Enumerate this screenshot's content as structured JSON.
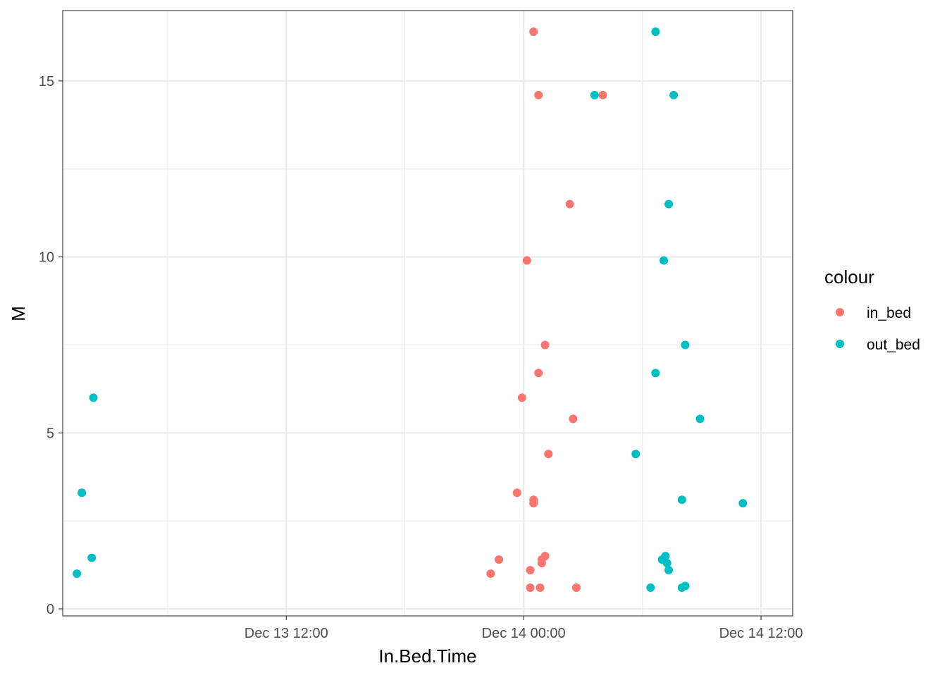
{
  "chart_data": {
    "type": "scatter",
    "title": "",
    "xlabel": "In.Bed.Time",
    "ylabel": "M",
    "x_ticks": [
      "Dec 13 12:00",
      "Dec 14 00:00",
      "Dec 14 12:00"
    ],
    "y_ticks": [
      "0",
      "5",
      "10",
      "15"
    ],
    "xlim": [
      "Dec 13 00:42",
      "Dec 14 13:36"
    ],
    "ylim": [
      -0.2,
      17.0
    ],
    "grid": true,
    "legend": {
      "title": "colour",
      "position": "right"
    },
    "colors": {
      "in_bed": "#F8766D",
      "out_bed": "#00BFC4"
    },
    "series": [
      {
        "name": "in_bed",
        "points": [
          {
            "x": "Dec 14 00:30",
            "y": 16.4
          },
          {
            "x": "Dec 14 00:45",
            "y": 14.6
          },
          {
            "x": "Dec 14 04:00",
            "y": 14.6
          },
          {
            "x": "Dec 14 02:20",
            "y": 11.5
          },
          {
            "x": "Dec 14 00:10",
            "y": 9.9
          },
          {
            "x": "Dec 14 01:05",
            "y": 7.5
          },
          {
            "x": "Dec 14 00:45",
            "y": 6.7
          },
          {
            "x": "Dec 13 23:55",
            "y": 6.0
          },
          {
            "x": "Dec 14 02:30",
            "y": 5.4
          },
          {
            "x": "Dec 14 01:15",
            "y": 4.4
          },
          {
            "x": "Dec 13 23:40",
            "y": 3.3
          },
          {
            "x": "Dec 14 00:30",
            "y": 3.1
          },
          {
            "x": "Dec 14 00:30",
            "y": 3.0
          },
          {
            "x": "Dec 14 01:05",
            "y": 1.5
          },
          {
            "x": "Dec 14 00:55",
            "y": 1.4
          },
          {
            "x": "Dec 14 00:55",
            "y": 1.3
          },
          {
            "x": "Dec 13 22:45",
            "y": 1.4
          },
          {
            "x": "Dec 14 00:20",
            "y": 1.1
          },
          {
            "x": "Dec 13 22:20",
            "y": 1.0
          },
          {
            "x": "Dec 14 00:20",
            "y": 0.6
          },
          {
            "x": "Dec 14 00:50",
            "y": 0.6
          },
          {
            "x": "Dec 14 02:40",
            "y": 0.6
          }
        ]
      },
      {
        "name": "out_bed",
        "points": [
          {
            "x": "Dec 14 06:40",
            "y": 16.4
          },
          {
            "x": "Dec 14 03:35",
            "y": 14.6
          },
          {
            "x": "Dec 14 07:35",
            "y": 14.6
          },
          {
            "x": "Dec 14 07:20",
            "y": 11.5
          },
          {
            "x": "Dec 14 07:05",
            "y": 9.9
          },
          {
            "x": "Dec 14 08:10",
            "y": 7.5
          },
          {
            "x": "Dec 14 06:40",
            "y": 6.7
          },
          {
            "x": "Dec 14 08:55",
            "y": 5.4
          },
          {
            "x": "Dec 14 05:40",
            "y": 4.4
          },
          {
            "x": "Dec 14 08:00",
            "y": 3.1
          },
          {
            "x": "Dec 14 11:05",
            "y": 3.0
          },
          {
            "x": "Dec 14 07:00",
            "y": 1.4
          },
          {
            "x": "Dec 14 07:10",
            "y": 1.5
          },
          {
            "x": "Dec 14 07:15",
            "y": 1.3
          },
          {
            "x": "Dec 14 07:20",
            "y": 1.1
          },
          {
            "x": "Dec 14 06:25",
            "y": 0.6
          },
          {
            "x": "Dec 14 08:00",
            "y": 0.6
          },
          {
            "x": "Dec 14 08:10",
            "y": 0.65
          },
          {
            "x": "Dec 13 02:15",
            "y": 6.0
          },
          {
            "x": "Dec 13 01:40",
            "y": 3.3
          },
          {
            "x": "Dec 13 02:10",
            "y": 1.45
          },
          {
            "x": "Dec 13 01:25",
            "y": 1.0
          }
        ]
      }
    ]
  }
}
